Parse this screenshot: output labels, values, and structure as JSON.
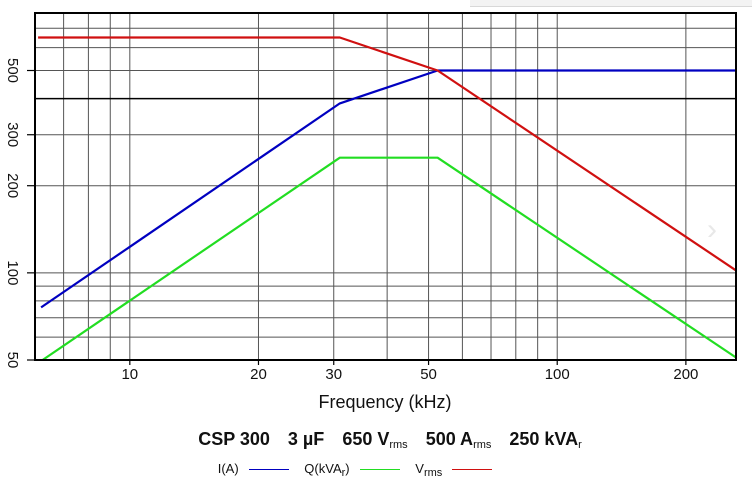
{
  "chart_data": {
    "type": "line",
    "title": "CSP 300   3 µF   650 Vrms   500 Arms   250 kVAr",
    "title_parts": [
      {
        "main": "CSP 300",
        "sub": ""
      },
      {
        "main": "3 µF",
        "sub": ""
      },
      {
        "main": "650 V",
        "sub": "rms"
      },
      {
        "main": "500 A",
        "sub": "rms"
      },
      {
        "main": "250 kVA",
        "sub": "r"
      }
    ],
    "xlabel": "Frequency (kHz)",
    "ylabel": "",
    "xscale": "log",
    "yscale": "log",
    "xlim": [
      6,
      262
    ],
    "ylim": [
      50,
      790
    ],
    "grid": true,
    "x_ticks": [
      10,
      20,
      30,
      50,
      100,
      200
    ],
    "x_tick_labels": [
      "10",
      "20",
      "30",
      "50",
      "100",
      "200"
    ],
    "y_ticks": [
      50,
      100,
      200,
      300,
      500
    ],
    "y_tick_labels": [
      "50",
      "100",
      "200",
      "300",
      "500"
    ],
    "x_grid": [
      7,
      8,
      9,
      10,
      20,
      30,
      40,
      50,
      60,
      70,
      80,
      90,
      100,
      200
    ],
    "y_grid": [
      60,
      70,
      80,
      90,
      100,
      200,
      300,
      400,
      500,
      600,
      700
    ],
    "y_major_grid": [
      400
    ],
    "series": [
      {
        "name": "I(A)",
        "color": "#0000c0",
        "x": [
          6.2,
          31,
          52.5,
          262
        ],
        "y": [
          76,
          385,
          500,
          500
        ]
      },
      {
        "name": "Q(kVAr)",
        "color": "#22dd22",
        "x": [
          6.25,
          31,
          52.5,
          262
        ],
        "y": [
          50,
          250,
          250,
          51
        ]
      },
      {
        "name": "Vrms",
        "color": "#d01010",
        "x": [
          6.1,
          31,
          52.5,
          262
        ],
        "y": [
          650,
          650,
          500,
          102
        ]
      }
    ],
    "legend": [
      {
        "label": "I(A)",
        "sub": "",
        "color": "#0000c0"
      },
      {
        "label": "Q(kVA",
        "sub": "r",
        "after": ")",
        "color": "#22dd22"
      },
      {
        "label": "V",
        "sub": "rms",
        "color": "#d01010"
      }
    ],
    "legend_position": "bottom"
  },
  "ui": {
    "next_arrow": "›"
  }
}
